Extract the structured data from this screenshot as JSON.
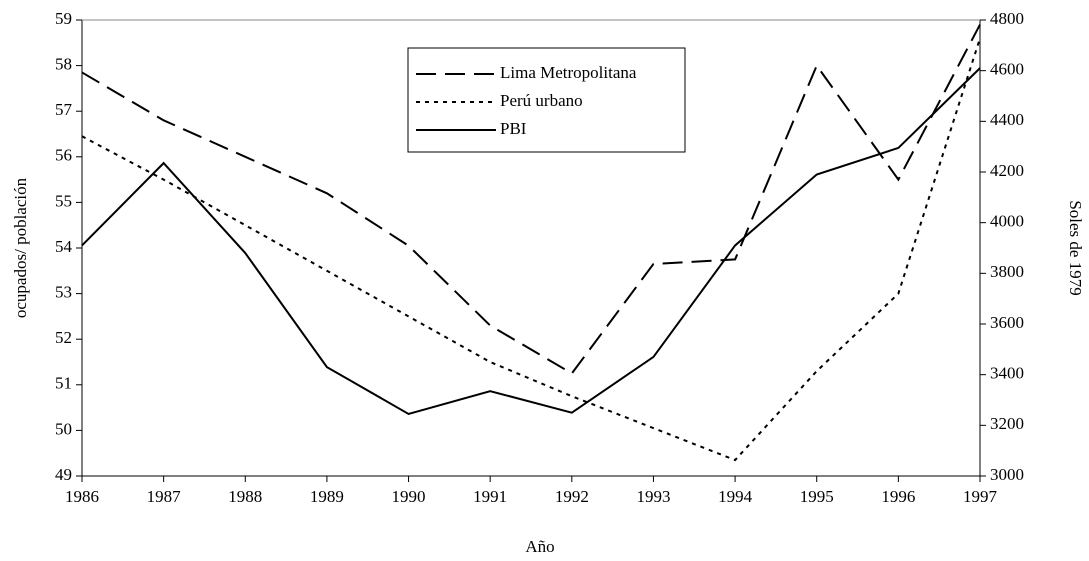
{
  "chart_data": {
    "type": "line",
    "x_label": "Año",
    "y_label": "ocupados/ población",
    "y2_label": "Soles de 1979",
    "categories": [
      "1986",
      "1987",
      "1988",
      "1989",
      "1990",
      "1991",
      "1992",
      "1993",
      "1994",
      "1995",
      "1996",
      "1997"
    ],
    "series": [
      {
        "name": "Lima Metropolitana",
        "color": "#000000",
        "dash": "dashed",
        "values": [
          57.85,
          56.8,
          56.0,
          55.2,
          54.05,
          52.3,
          51.25,
          53.65,
          53.75,
          58.0,
          55.5,
          58.9
        ]
      },
      {
        "name": "Perú urbano",
        "color": "#000000",
        "dash": "dotted",
        "values": [
          56.45,
          55.5,
          54.5,
          53.5,
          52.5,
          51.5,
          50.75,
          50.05,
          49.35,
          51.3,
          53.0,
          58.6
        ]
      },
      {
        "name": "PBI",
        "color": "#000000",
        "dash": "solid",
        "axis": "y2",
        "values": [
          3910,
          4235,
          3880,
          3430,
          3245,
          3335,
          3250,
          3470,
          3910,
          4190,
          4295,
          4610
        ]
      }
    ],
    "ylim": [
      49,
      59
    ],
    "yticks": [
      49,
      50,
      51,
      52,
      53,
      54,
      55,
      56,
      57,
      58,
      59
    ],
    "y2lim": [
      3000,
      4800
    ],
    "y2ticks": [
      3000,
      3200,
      3400,
      3600,
      3800,
      4000,
      4200,
      4400,
      4600,
      4800
    ],
    "grid": false,
    "legend": "top-center"
  }
}
